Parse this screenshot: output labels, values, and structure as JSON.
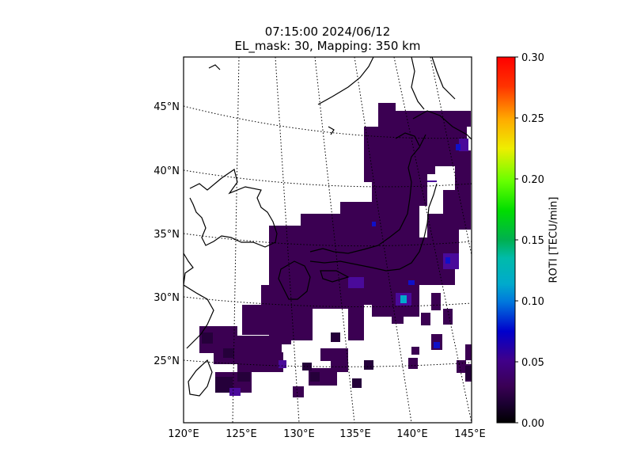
{
  "title": {
    "line1": "07:15:00 2024/06/12",
    "line2": "EL_mask: 30, Mapping: 350 km"
  },
  "map": {
    "lon_range": [
      120,
      145
    ],
    "lat_range": [
      20,
      49
    ],
    "lon_ticks": [
      "120°E",
      "125°E",
      "130°E",
      "135°E",
      "140°E",
      "145°E"
    ],
    "lat_ticks": [
      "25°N",
      "30°N",
      "35°N",
      "40°N",
      "45°N"
    ],
    "graticule": "dotted",
    "base_color": "#3b0052"
  },
  "colorbar": {
    "label": "ROTI [TECU/min]",
    "ticks": [
      "0.00",
      "0.05",
      "0.10",
      "0.15",
      "0.20",
      "0.25",
      "0.30"
    ],
    "range": [
      0,
      0.3
    ],
    "colormap": "nipy_spectral"
  }
}
